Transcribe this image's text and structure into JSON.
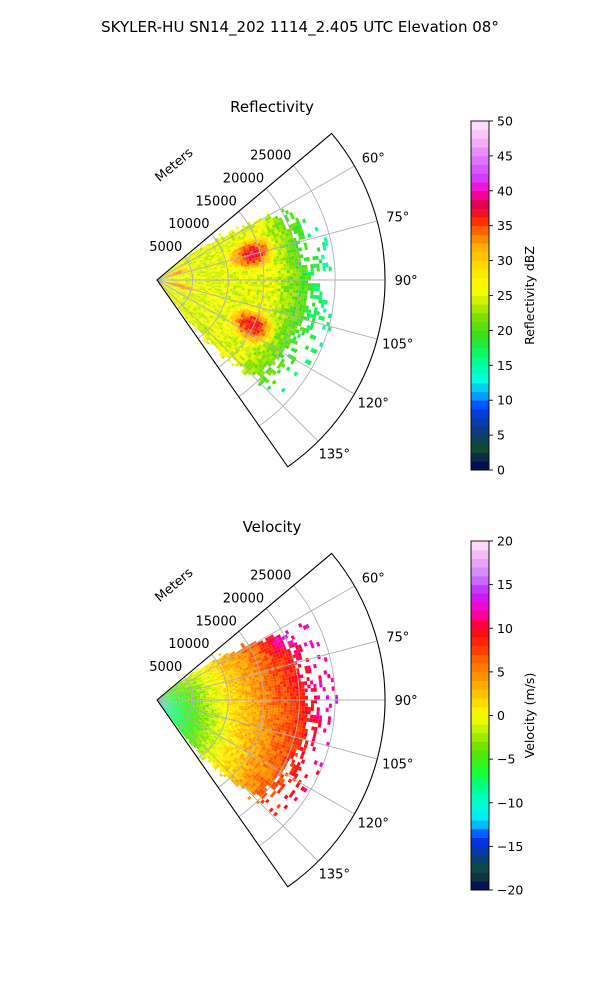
{
  "figure": {
    "suptitle": "SKYLER-HU  SN14_202  1114_2.405 UTC Elevation 08°"
  },
  "chart_data": [
    {
      "type": "heatmap",
      "projection": "polar-sector",
      "title": "Reflectivity",
      "range_axis_label": "Meters",
      "range_ticks": [
        5000,
        10000,
        15000,
        20000,
        25000
      ],
      "range_tick_labels": [
        "5000",
        "10000",
        "15000",
        "20000",
        "25000"
      ],
      "range_lim": [
        0,
        32000
      ],
      "azimuth_lim": [
        50,
        145
      ],
      "azimuth_ticks": [
        60,
        75,
        90,
        105,
        120,
        135
      ],
      "azimuth_tick_labels": [
        "60°",
        "75°",
        "90°",
        "105°",
        "120°",
        "135°"
      ],
      "grid": true,
      "colorbar": {
        "label": "Reflectivity dBZ",
        "range": [
          0,
          50
        ],
        "ticks": [
          0,
          5,
          10,
          15,
          20,
          25,
          30,
          35,
          40,
          45,
          50
        ],
        "tick_labels": [
          "0",
          "5",
          "10",
          "15",
          "20",
          "25",
          "30",
          "35",
          "40",
          "45",
          "50"
        ],
        "colormap": [
          [
            0,
            "#000060"
          ],
          [
            3,
            "#104a30"
          ],
          [
            6,
            "#0a3a8a"
          ],
          [
            9,
            "#0040ff"
          ],
          [
            11,
            "#00b0ff"
          ],
          [
            13,
            "#00ffe0"
          ],
          [
            16,
            "#00ff80"
          ],
          [
            19,
            "#30e020"
          ],
          [
            22,
            "#80e000"
          ],
          [
            24,
            "#c8f000"
          ],
          [
            26,
            "#ffff00"
          ],
          [
            29,
            "#ffe000"
          ],
          [
            32,
            "#ffb000"
          ],
          [
            34,
            "#ff7000"
          ],
          [
            36,
            "#ff2000"
          ],
          [
            38,
            "#e00050"
          ],
          [
            40,
            "#ff00c0"
          ],
          [
            42,
            "#d040ff"
          ],
          [
            45,
            "#e080ff"
          ],
          [
            47,
            "#f4b0f4"
          ],
          [
            50,
            "#ffe8ff"
          ]
        ]
      },
      "field_summary": {
        "data_max_range_m": 23000,
        "echo_cores_dbz": [
          {
            "azimuth_deg": 74,
            "range_m": 13500,
            "value": 37
          },
          {
            "azimuth_deg": 115,
            "range_m": 14500,
            "value": 37
          },
          {
            "azimuth_deg": 98,
            "range_m": 7000,
            "value": 22
          },
          {
            "azimuth_deg": 104,
            "range_m": 2500,
            "value": 34
          },
          {
            "azimuth_deg": 70,
            "range_m": 2500,
            "value": 33
          }
        ],
        "background_dbz": 25
      }
    },
    {
      "type": "heatmap",
      "projection": "polar-sector",
      "title": "Velocity",
      "range_axis_label": "Meters",
      "range_ticks": [
        5000,
        10000,
        15000,
        20000,
        25000
      ],
      "range_tick_labels": [
        "5000",
        "10000",
        "15000",
        "20000",
        "25000"
      ],
      "range_lim": [
        0,
        32000
      ],
      "azimuth_lim": [
        50,
        145
      ],
      "azimuth_ticks": [
        60,
        75,
        90,
        105,
        120,
        135
      ],
      "azimuth_tick_labels": [
        "60°",
        "75°",
        "90°",
        "105°",
        "120°",
        "135°"
      ],
      "grid": true,
      "colorbar": {
        "label": "Velocity (m/s)",
        "range": [
          -20,
          20
        ],
        "ticks": [
          -20,
          -15,
          -10,
          -5,
          0,
          5,
          10,
          15,
          20
        ],
        "tick_labels": [
          "−20",
          "−15",
          "−10",
          "−5",
          "0",
          "5",
          "10",
          "15",
          "20"
        ],
        "colormap": [
          [
            -20,
            "#000060"
          ],
          [
            -18,
            "#104a30"
          ],
          [
            -16,
            "#0a3a8a"
          ],
          [
            -14,
            "#0030ff"
          ],
          [
            -12,
            "#00e8ff"
          ],
          [
            -10,
            "#00ffd0"
          ],
          [
            -8,
            "#00ff80"
          ],
          [
            -6,
            "#20ff20"
          ],
          [
            -4,
            "#60e000"
          ],
          [
            -2,
            "#b0f000"
          ],
          [
            0,
            "#ffff00"
          ],
          [
            2,
            "#ffd000"
          ],
          [
            4,
            "#ffa000"
          ],
          [
            6,
            "#ff7000"
          ],
          [
            8,
            "#ff3000"
          ],
          [
            10,
            "#ff0020"
          ],
          [
            12,
            "#ff00c0"
          ],
          [
            14,
            "#c020ff"
          ],
          [
            16,
            "#d080ff"
          ],
          [
            18,
            "#f0b0f0"
          ],
          [
            20,
            "#ffe8ff"
          ]
        ]
      },
      "field_summary": {
        "data_max_range_m": 23000,
        "near_radar_ms": -8,
        "mid_range_ms": 0,
        "far_range_ms": 8,
        "max_ms": 12,
        "max_location": {
          "azimuth_deg": 63,
          "range_m": 20000
        }
      }
    }
  ]
}
